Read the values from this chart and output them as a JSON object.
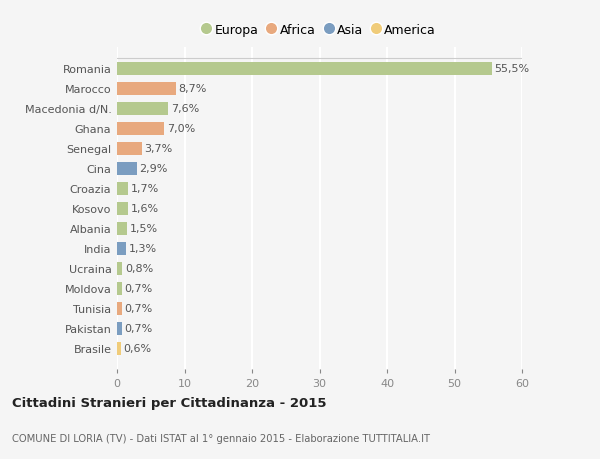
{
  "categories": [
    "Romania",
    "Marocco",
    "Macedonia d/N.",
    "Ghana",
    "Senegal",
    "Cina",
    "Croazia",
    "Kosovo",
    "Albania",
    "India",
    "Ucraina",
    "Moldova",
    "Tunisia",
    "Pakistan",
    "Brasile"
  ],
  "values": [
    55.5,
    8.7,
    7.6,
    7.0,
    3.7,
    2.9,
    1.7,
    1.6,
    1.5,
    1.3,
    0.8,
    0.7,
    0.7,
    0.7,
    0.6
  ],
  "labels": [
    "55,5%",
    "8,7%",
    "7,6%",
    "7,0%",
    "3,7%",
    "2,9%",
    "1,7%",
    "1,6%",
    "1,5%",
    "1,3%",
    "0,8%",
    "0,7%",
    "0,7%",
    "0,7%",
    "0,6%"
  ],
  "colors": [
    "#b5c98e",
    "#e8a97e",
    "#b5c98e",
    "#e8a97e",
    "#e8a97e",
    "#7b9dc0",
    "#b5c98e",
    "#b5c98e",
    "#b5c98e",
    "#7b9dc0",
    "#b5c98e",
    "#b5c98e",
    "#e8a97e",
    "#7b9dc0",
    "#f0cc7a"
  ],
  "legend_labels": [
    "Europa",
    "Africa",
    "Asia",
    "America"
  ],
  "legend_colors": [
    "#b5c98e",
    "#e8a97e",
    "#7b9dc0",
    "#f0cc7a"
  ],
  "title": "Cittadini Stranieri per Cittadinanza - 2015",
  "subtitle": "COMUNE DI LORIA (TV) - Dati ISTAT al 1° gennaio 2015 - Elaborazione TUTTITALIA.IT",
  "xlim": [
    0,
    60
  ],
  "xticks": [
    0,
    10,
    20,
    30,
    40,
    50,
    60
  ],
  "background_color": "#f5f5f5",
  "plot_bg_color": "#f5f5f5",
  "grid_color": "#ffffff",
  "bar_height": 0.65,
  "label_fontsize": 8,
  "ytick_fontsize": 8,
  "xtick_fontsize": 8
}
